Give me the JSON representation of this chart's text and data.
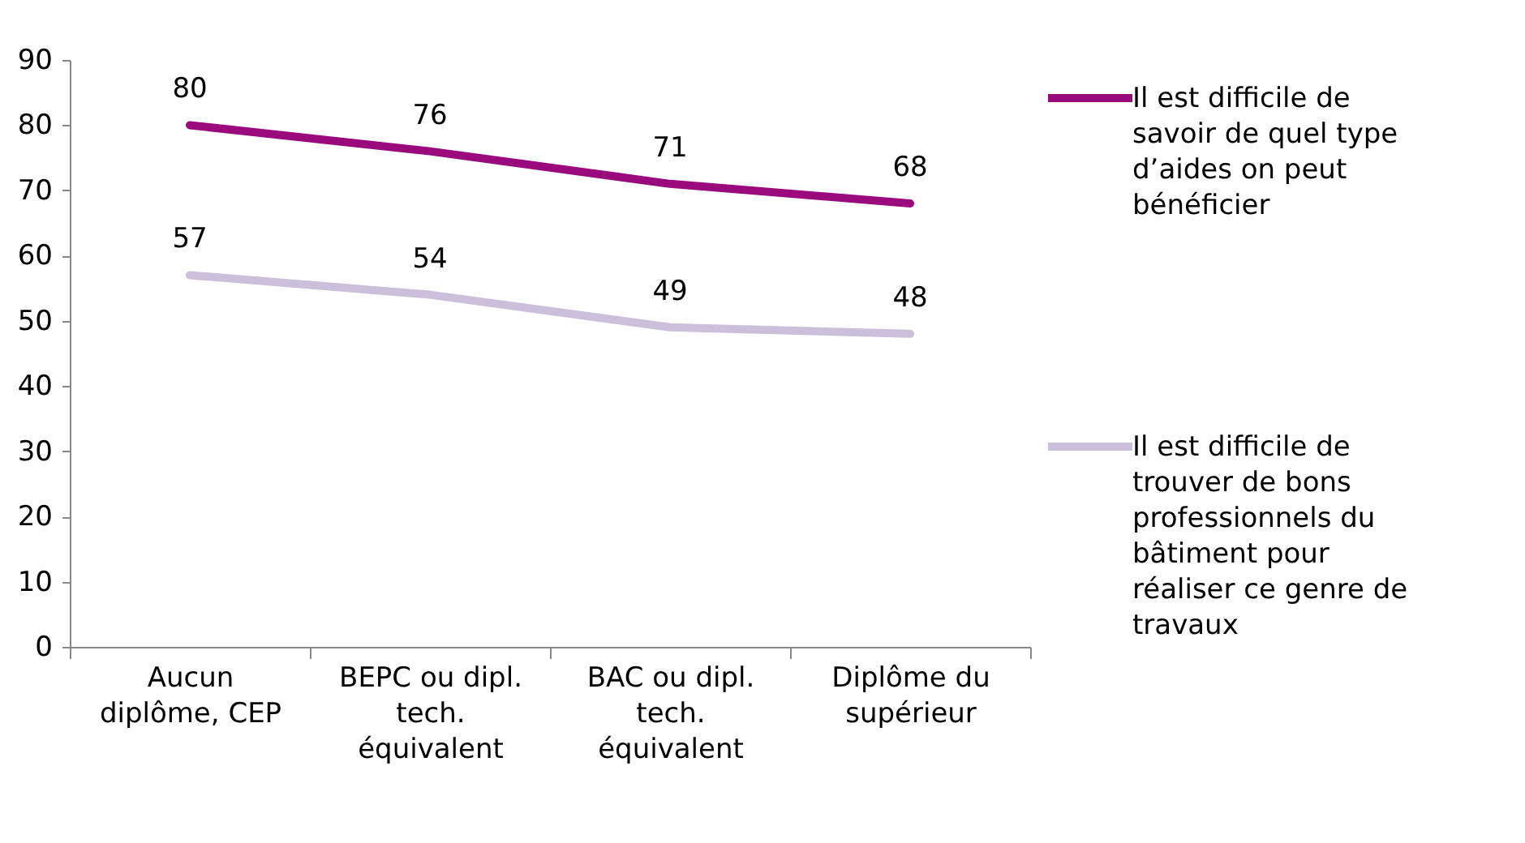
{
  "chart_data": {
    "type": "line",
    "categories": [
      "Aucun diplôme, CEP",
      "BEPC ou dipl. tech. équivalent",
      "BAC ou dipl. tech. équivalent",
      "Diplôme du supérieur"
    ],
    "series": [
      {
        "name": "Il est difficile de savoir de quel type d’aides on peut bénéficier",
        "color": "#9b0a7d",
        "values": [
          80,
          76,
          71,
          68
        ]
      },
      {
        "name": "Il est difficile de trouver de bons professionnels du bâtiment pour réaliser ce genre de travaux",
        "color": "#cbbfdc",
        "values": [
          57,
          54,
          49,
          48
        ]
      }
    ],
    "ylim": [
      0,
      90
    ],
    "yticks": [
      0,
      10,
      20,
      30,
      40,
      50,
      60,
      70,
      80,
      90
    ],
    "grid": false,
    "legend": "right",
    "data_labels": true,
    "marker": "none",
    "line_style": "solid"
  }
}
